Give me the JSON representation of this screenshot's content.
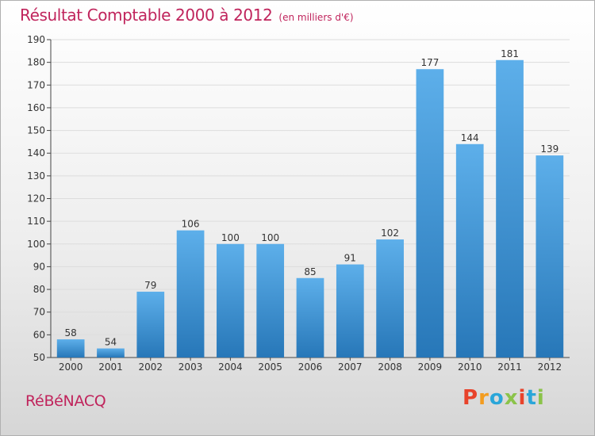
{
  "title": "Résultat Comptable 2000 à 2012",
  "unit_note": "(en milliers d'€)",
  "commune": "RéBéNACQ",
  "logo": {
    "text": "Proxiti",
    "colors": [
      "#e8432b",
      "#f39c1f",
      "#2aa6d9",
      "#8bc34a",
      "#e8432b",
      "#2aa6d9",
      "#8bc34a"
    ]
  },
  "colors": {
    "title": "#c0245c",
    "bar_top": "#5dafea",
    "bar_bottom": "#2777b8",
    "grid": "#dddddd"
  },
  "chart_data": {
    "type": "bar",
    "categories": [
      "2000",
      "2001",
      "2002",
      "2003",
      "2004",
      "2005",
      "2006",
      "2007",
      "2008",
      "2009",
      "2010",
      "2011",
      "2012"
    ],
    "values": [
      58,
      54,
      79,
      106,
      100,
      100,
      85,
      91,
      102,
      177,
      144,
      181,
      139
    ],
    "ylim": [
      50,
      190
    ],
    "yticks": [
      50,
      60,
      70,
      80,
      90,
      100,
      110,
      120,
      130,
      140,
      150,
      160,
      170,
      180,
      190
    ],
    "grid": true,
    "legend": "none"
  }
}
